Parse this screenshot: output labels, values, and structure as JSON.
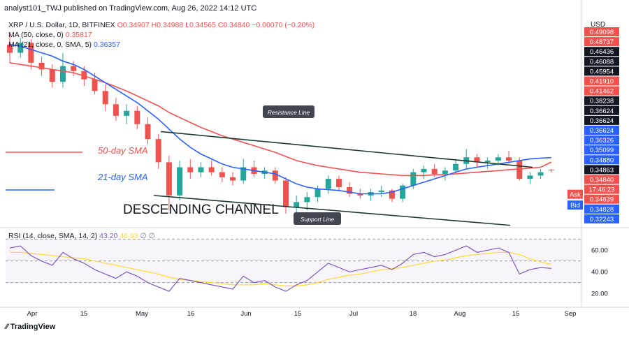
{
  "header": {
    "publisher": "analyst101_TWJ published on TradingView.com, Aug 26, 2022 14:12 UTC"
  },
  "legend": {
    "symbol": "XRP / U.S. Dollar, 1D, BITFINEX",
    "ohlc": "O0.34907 H0.34988 L0.34565 C0.34840 −0.00070 (−0.20%)",
    "ma50_label": "MA (50, close, 0)",
    "ma50_value": "0.35817",
    "ma21_label": "MA (21, close, 0, SMA, 5)",
    "ma21_value": "0.36357",
    "rsi_label": "RSI (14, close, SMA, 14, 2)",
    "rsi_value": "43.20",
    "rsi_ma_value": "46.93"
  },
  "price_axis": {
    "currency": "USD",
    "labels": [
      {
        "text": "0.49098",
        "color": "#ef5350"
      },
      {
        "text": "0.48737",
        "color": "#ef5350"
      },
      {
        "text": "0.46436",
        "color": "#131722"
      },
      {
        "text": "0.46088",
        "color": "#131722"
      },
      {
        "text": "0.45954",
        "color": "#131722"
      },
      {
        "text": "0.41910",
        "color": "#ef5350"
      },
      {
        "text": "0.41462",
        "color": "#ef5350"
      },
      {
        "text": "0.38238",
        "color": "#131722"
      },
      {
        "text": "0.36624",
        "color": "#131722"
      },
      {
        "text": "0.36624",
        "color": "#131722"
      },
      {
        "text": "0.36624",
        "color": "#2962ff"
      },
      {
        "text": "0.36326",
        "color": "#2962ff"
      },
      {
        "text": "0.35099",
        "color": "#2962ff"
      },
      {
        "text": "0.34880",
        "color": "#2962ff"
      },
      {
        "text": "0.34863",
        "color": "#131722"
      },
      {
        "text": "0.34840",
        "color": "#ef5350"
      },
      {
        "text": "17:46:23",
        "color": "#ef5350"
      },
      {
        "text": "0.34839",
        "color": "#ef5350"
      },
      {
        "text": "0.34828",
        "color": "#2962ff"
      },
      {
        "text": "0.32243",
        "color": "#2962ff"
      }
    ],
    "ask_label": "Ask",
    "bid_label": "Bid"
  },
  "annotations": {
    "resistance": "Resistance Line",
    "support": "Support Line",
    "channel": "DESCENDING CHANNEL",
    "sma50": "50-day SMA",
    "sma21": "21-day SMA"
  },
  "rsi_axis": [
    "60.00",
    "40.00",
    "20.00"
  ],
  "time_axis": [
    "Apr",
    "15",
    "May",
    "16",
    "Jun",
    "15",
    "Jul",
    "18",
    "Aug",
    "15",
    "Sep"
  ],
  "footer": {
    "brand": "TradingView"
  },
  "colors": {
    "up": "#26a69a",
    "down": "#ef5350",
    "ma50": "#ef5350",
    "ma21": "#2962ff",
    "rsi": "#7e57c2",
    "rsi_ma": "#fdd835",
    "channel": "#1b3a2f"
  },
  "chart_data": {
    "type": "candlestick",
    "symbol": "XRP / U.S. Dollar",
    "timeframe": "1D",
    "dates": [
      "Mar 26",
      "Mar 29",
      "Apr 1",
      "Apr 4",
      "Apr 7",
      "Apr 10",
      "Apr 13",
      "Apr 16",
      "Apr 19",
      "Apr 22",
      "Apr 25",
      "Apr 28",
      "May 1",
      "May 4",
      "May 7",
      "May 10",
      "May 13",
      "May 16",
      "May 19",
      "May 22",
      "May 25",
      "May 28",
      "May 31",
      "Jun 3",
      "Jun 6",
      "Jun 9",
      "Jun 12",
      "Jun 15",
      "Jun 18",
      "Jun 21",
      "Jun 24",
      "Jun 27",
      "Jun 30",
      "Jul 3",
      "Jul 6",
      "Jul 9",
      "Jul 12",
      "Jul 15",
      "Jul 18",
      "Jul 21",
      "Jul 24",
      "Jul 27",
      "Jul 30",
      "Aug 2",
      "Aug 5",
      "Aug 8",
      "Aug 11",
      "Aug 14",
      "Aug 17",
      "Aug 20",
      "Aug 23",
      "Aug 26"
    ],
    "ohlc": [
      [
        0.5,
        0.512,
        0.478,
        0.49
      ],
      [
        0.49,
        0.508,
        0.484,
        0.502
      ],
      [
        0.502,
        0.506,
        0.47,
        0.478
      ],
      [
        0.478,
        0.485,
        0.462,
        0.47
      ],
      [
        0.47,
        0.476,
        0.448,
        0.455
      ],
      [
        0.455,
        0.49,
        0.448,
        0.474
      ],
      [
        0.474,
        0.48,
        0.462,
        0.468
      ],
      [
        0.468,
        0.474,
        0.45,
        0.458
      ],
      [
        0.458,
        0.466,
        0.44,
        0.444
      ],
      [
        0.444,
        0.452,
        0.42,
        0.428
      ],
      [
        0.428,
        0.436,
        0.408,
        0.414
      ],
      [
        0.414,
        0.428,
        0.404,
        0.42
      ],
      [
        0.42,
        0.426,
        0.398,
        0.404
      ],
      [
        0.404,
        0.412,
        0.38,
        0.386
      ],
      [
        0.386,
        0.392,
        0.35,
        0.358
      ],
      [
        0.358,
        0.366,
        0.3,
        0.318
      ],
      [
        0.318,
        0.36,
        0.312,
        0.352
      ],
      [
        0.352,
        0.362,
        0.338,
        0.346
      ],
      [
        0.346,
        0.358,
        0.34,
        0.352
      ],
      [
        0.352,
        0.36,
        0.342,
        0.346
      ],
      [
        0.346,
        0.352,
        0.334,
        0.34
      ],
      [
        0.34,
        0.346,
        0.33,
        0.336
      ],
      [
        0.336,
        0.362,
        0.332,
        0.352
      ],
      [
        0.352,
        0.36,
        0.34,
        0.344
      ],
      [
        0.344,
        0.352,
        0.338,
        0.348
      ],
      [
        0.348,
        0.352,
        0.332,
        0.336
      ],
      [
        0.336,
        0.34,
        0.296,
        0.304
      ],
      [
        0.304,
        0.318,
        0.29,
        0.31
      ],
      [
        0.31,
        0.322,
        0.3,
        0.316
      ],
      [
        0.316,
        0.33,
        0.31,
        0.326
      ],
      [
        0.326,
        0.342,
        0.32,
        0.338
      ],
      [
        0.338,
        0.342,
        0.324,
        0.328
      ],
      [
        0.328,
        0.334,
        0.316,
        0.32
      ],
      [
        0.32,
        0.326,
        0.314,
        0.318
      ],
      [
        0.318,
        0.326,
        0.312,
        0.322
      ],
      [
        0.322,
        0.33,
        0.316,
        0.324
      ],
      [
        0.324,
        0.326,
        0.31,
        0.314
      ],
      [
        0.314,
        0.332,
        0.31,
        0.33
      ],
      [
        0.33,
        0.35,
        0.326,
        0.346
      ],
      [
        0.346,
        0.354,
        0.338,
        0.35
      ],
      [
        0.35,
        0.356,
        0.34,
        0.344
      ],
      [
        0.344,
        0.352,
        0.336,
        0.348
      ],
      [
        0.348,
        0.362,
        0.344,
        0.356
      ],
      [
        0.356,
        0.374,
        0.35,
        0.364
      ],
      [
        0.364,
        0.368,
        0.352,
        0.358
      ],
      [
        0.358,
        0.364,
        0.35,
        0.36
      ],
      [
        0.36,
        0.368,
        0.354,
        0.364
      ],
      [
        0.364,
        0.372,
        0.356,
        0.36
      ],
      [
        0.36,
        0.364,
        0.336,
        0.338
      ],
      [
        0.338,
        0.346,
        0.332,
        0.342
      ],
      [
        0.342,
        0.35,
        0.338,
        0.346
      ],
      [
        0.3491,
        0.3499,
        0.3457,
        0.3484
      ]
    ],
    "ma50": [
      0.478,
      0.476,
      0.474,
      0.472,
      0.47,
      0.468,
      0.466,
      0.462,
      0.458,
      0.454,
      0.449,
      0.444,
      0.438,
      0.432,
      0.426,
      0.418,
      0.412,
      0.406,
      0.4,
      0.395,
      0.39,
      0.386,
      0.382,
      0.378,
      0.374,
      0.37,
      0.365,
      0.36,
      0.357,
      0.354,
      0.352,
      0.35,
      0.348,
      0.346,
      0.345,
      0.344,
      0.343,
      0.342,
      0.342,
      0.342,
      0.343,
      0.343,
      0.344,
      0.345,
      0.346,
      0.347,
      0.348,
      0.349,
      0.35,
      0.351,
      0.352,
      0.3582
    ],
    "ma21": [
      0.5,
      0.498,
      0.494,
      0.49,
      0.486,
      0.48,
      0.476,
      0.47,
      0.462,
      0.454,
      0.446,
      0.438,
      0.43,
      0.42,
      0.41,
      0.398,
      0.386,
      0.376,
      0.368,
      0.362,
      0.356,
      0.352,
      0.35,
      0.348,
      0.346,
      0.344,
      0.338,
      0.332,
      0.328,
      0.326,
      0.325,
      0.324,
      0.322,
      0.32,
      0.32,
      0.32,
      0.322,
      0.326,
      0.33,
      0.334,
      0.338,
      0.342,
      0.346,
      0.35,
      0.352,
      0.354,
      0.356,
      0.358,
      0.36,
      0.362,
      0.363,
      0.3636
    ],
    "rsi": [
      62,
      64,
      55,
      50,
      46,
      58,
      52,
      48,
      42,
      38,
      34,
      40,
      36,
      30,
      26,
      22,
      34,
      32,
      30,
      28,
      26,
      24,
      36,
      30,
      32,
      26,
      22,
      28,
      32,
      40,
      48,
      44,
      40,
      42,
      44,
      46,
      42,
      48,
      56,
      58,
      54,
      56,
      60,
      64,
      58,
      60,
      62,
      58,
      38,
      42,
      44,
      43.2
    ],
    "rsi_ma": [
      58,
      58,
      57,
      56,
      55,
      54,
      53,
      52,
      50,
      48,
      46,
      44,
      42,
      40,
      38,
      35,
      33,
      32,
      31,
      30,
      29,
      28,
      28,
      28,
      29,
      28,
      27,
      27,
      28,
      30,
      33,
      35,
      37,
      38,
      40,
      42,
      43,
      44,
      46,
      48,
      50,
      51,
      53,
      55,
      56,
      57,
      58,
      58,
      56,
      52,
      49,
      46.93
    ],
    "resistance_line": {
      "from": [
        "Apr 30",
        0.395
      ],
      "to": [
        "Aug 22",
        0.352
      ]
    },
    "support_line": {
      "from": [
        "Apr 30",
        0.318
      ],
      "to": [
        "Aug 22",
        0.282
      ]
    },
    "y_axis_label": "USD"
  }
}
